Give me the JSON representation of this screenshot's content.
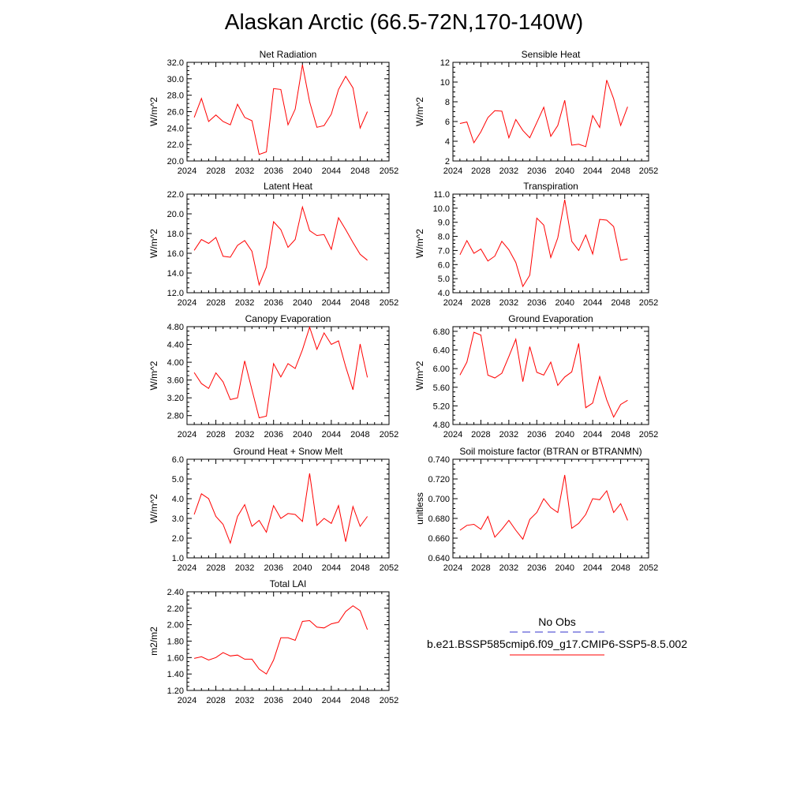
{
  "figure": {
    "title": "Alaskan Arctic (66.5-72N,170-140W)"
  },
  "legend": {
    "obs_label": "No Obs",
    "obs_color": "#3333cc",
    "case_label": "b.e21.BSSP585cmip6.f09_g17.CMIP6-SSP5-8.5.002",
    "case_color": "#ff0000"
  },
  "chart_data": [
    {
      "type": "line",
      "title": "Net Radiation",
      "ylabel": "W/m^2",
      "xlim": [
        2024,
        2052
      ],
      "ylim": [
        20,
        32
      ],
      "xticks": [
        "2024",
        "2028",
        "2032",
        "2036",
        "2040",
        "2044",
        "2048",
        "2052"
      ],
      "yticks": [
        "20.0",
        "22.0",
        "24.0",
        "26.0",
        "28.0",
        "30.0",
        "32.0"
      ],
      "x": [
        2025,
        2026,
        2027,
        2028,
        2029,
        2030,
        2031,
        2032,
        2033,
        2034,
        2035,
        2036,
        2037,
        2038,
        2039,
        2040,
        2041,
        2042,
        2043,
        2044,
        2045,
        2046,
        2047,
        2048,
        2049
      ],
      "series": [
        {
          "values": [
            25.3,
            27.6,
            24.8,
            25.6,
            24.8,
            24.4,
            26.9,
            25.3,
            24.9,
            20.8,
            21.1,
            28.8,
            28.7,
            24.4,
            26.3,
            31.7,
            27.2,
            24.1,
            24.3,
            25.7,
            28.7,
            30.3,
            28.9,
            24.0,
            26.0
          ]
        }
      ]
    },
    {
      "type": "line",
      "title": "Sensible Heat",
      "ylabel": "W/m^2",
      "xlim": [
        2024,
        2052
      ],
      "ylim": [
        2,
        12
      ],
      "xticks": [
        "2024",
        "2028",
        "2032",
        "2036",
        "2040",
        "2044",
        "2048",
        "2052"
      ],
      "yticks": [
        "2",
        "4",
        "6",
        "8",
        "10",
        "12"
      ],
      "x": [
        2025,
        2026,
        2027,
        2028,
        2029,
        2030,
        2031,
        2032,
        2033,
        2034,
        2035,
        2036,
        2037,
        2038,
        2039,
        2040,
        2041,
        2042,
        2043,
        2044,
        2045,
        2046,
        2047,
        2048,
        2049
      ],
      "series": [
        {
          "values": [
            5.8,
            5.95,
            3.85,
            4.95,
            6.4,
            7.1,
            7.05,
            4.35,
            6.2,
            5.1,
            4.35,
            5.9,
            7.45,
            4.5,
            5.6,
            8.15,
            3.6,
            3.7,
            3.45,
            6.6,
            5.4,
            10.2,
            8.3,
            5.6,
            7.5
          ]
        }
      ]
    },
    {
      "type": "line",
      "title": "Latent Heat",
      "ylabel": "W/m^2",
      "xlim": [
        2024,
        2052
      ],
      "ylim": [
        12,
        22
      ],
      "xticks": [
        "2024",
        "2028",
        "2032",
        "2036",
        "2040",
        "2044",
        "2048",
        "2052"
      ],
      "yticks": [
        "12.0",
        "14.0",
        "16.0",
        "18.0",
        "20.0",
        "22.0"
      ],
      "x": [
        2025,
        2026,
        2027,
        2028,
        2029,
        2030,
        2031,
        2032,
        2033,
        2034,
        2035,
        2036,
        2037,
        2038,
        2039,
        2040,
        2041,
        2042,
        2043,
        2044,
        2045,
        2046,
        2047,
        2048,
        2049
      ],
      "series": [
        {
          "values": [
            16.3,
            17.4,
            17.0,
            17.6,
            15.7,
            15.6,
            16.8,
            17.3,
            16.2,
            12.8,
            14.6,
            19.2,
            18.4,
            16.6,
            17.4,
            20.7,
            18.3,
            17.8,
            17.9,
            16.4,
            19.6,
            18.4,
            17.1,
            15.9,
            15.3
          ]
        }
      ]
    },
    {
      "type": "line",
      "title": "Transpiration",
      "ylabel": "W/m^2",
      "xlim": [
        2024,
        2052
      ],
      "ylim": [
        4,
        11
      ],
      "xticks": [
        "2024",
        "2028",
        "2032",
        "2036",
        "2040",
        "2044",
        "2048",
        "2052"
      ],
      "yticks": [
        "4.0",
        "5.0",
        "6.0",
        "7.0",
        "8.0",
        "9.0",
        "10.0",
        "11.0"
      ],
      "x": [
        2025,
        2026,
        2027,
        2028,
        2029,
        2030,
        2031,
        2032,
        2033,
        2034,
        2035,
        2036,
        2037,
        2038,
        2039,
        2040,
        2041,
        2042,
        2043,
        2044,
        2045,
        2046,
        2047,
        2048,
        2049
      ],
      "series": [
        {
          "values": [
            6.7,
            7.7,
            6.8,
            7.1,
            6.25,
            6.6,
            7.65,
            7.05,
            6.15,
            4.45,
            5.25,
            9.3,
            8.8,
            6.5,
            7.9,
            10.6,
            7.65,
            7.0,
            8.1,
            6.75,
            9.2,
            9.15,
            8.7,
            6.3,
            6.4
          ]
        }
      ]
    },
    {
      "type": "line",
      "title": "Canopy Evaporation",
      "ylabel": "W/m^2",
      "xlim": [
        2024,
        2052
      ],
      "ylim": [
        2.6,
        4.8
      ],
      "xticks": [
        "2024",
        "2028",
        "2032",
        "2036",
        "2040",
        "2044",
        "2048",
        "2052"
      ],
      "yticks": [
        "2.80",
        "3.20",
        "3.60",
        "4.00",
        "4.40",
        "4.80"
      ],
      "x": [
        2025,
        2026,
        2027,
        2028,
        2029,
        2030,
        2031,
        2032,
        2033,
        2034,
        2035,
        2036,
        2037,
        2038,
        2039,
        2040,
        2041,
        2042,
        2043,
        2044,
        2045,
        2046,
        2047,
        2048,
        2049
      ],
      "series": [
        {
          "values": [
            3.77,
            3.52,
            3.41,
            3.76,
            3.56,
            3.16,
            3.2,
            4.03,
            3.38,
            2.75,
            2.79,
            3.97,
            3.67,
            3.97,
            3.86,
            4.28,
            4.79,
            4.29,
            4.66,
            4.4,
            4.48,
            3.9,
            3.38,
            4.41,
            3.66
          ]
        }
      ]
    },
    {
      "type": "line",
      "title": "Ground Evaporation",
      "ylabel": "W/m^2",
      "xlim": [
        2024,
        2052
      ],
      "ylim": [
        4.8,
        6.9
      ],
      "xticks": [
        "2024",
        "2028",
        "2032",
        "2036",
        "2040",
        "2044",
        "2048",
        "2052"
      ],
      "yticks": [
        "4.80",
        "5.20",
        "5.60",
        "6.00",
        "6.40",
        "6.80"
      ],
      "x": [
        2025,
        2026,
        2027,
        2028,
        2029,
        2030,
        2031,
        2032,
        2033,
        2034,
        2035,
        2036,
        2037,
        2038,
        2039,
        2040,
        2041,
        2042,
        2043,
        2044,
        2045,
        2046,
        2047,
        2048,
        2049
      ],
      "series": [
        {
          "values": [
            5.86,
            6.14,
            6.78,
            6.72,
            5.86,
            5.8,
            5.9,
            6.26,
            6.63,
            5.72,
            6.47,
            5.92,
            5.86,
            6.14,
            5.64,
            5.82,
            5.93,
            6.54,
            5.16,
            5.26,
            5.83,
            5.33,
            4.96,
            5.23,
            5.32
          ]
        }
      ]
    },
    {
      "type": "line",
      "title": "Ground Heat + Snow Melt",
      "ylabel": "W/m^2",
      "xlim": [
        2024,
        2052
      ],
      "ylim": [
        1,
        6
      ],
      "xticks": [
        "2024",
        "2028",
        "2032",
        "2036",
        "2040",
        "2044",
        "2048",
        "2052"
      ],
      "yticks": [
        "1.0",
        "2.0",
        "3.0",
        "4.0",
        "5.0",
        "6.0"
      ],
      "x": [
        2025,
        2026,
        2027,
        2028,
        2029,
        2030,
        2031,
        2032,
        2033,
        2034,
        2035,
        2036,
        2037,
        2038,
        2039,
        2040,
        2041,
        2042,
        2043,
        2044,
        2045,
        2046,
        2047,
        2048,
        2049
      ],
      "series": [
        {
          "values": [
            3.2,
            4.25,
            4.0,
            3.1,
            2.7,
            1.75,
            3.1,
            3.7,
            2.6,
            2.9,
            2.3,
            3.65,
            3.0,
            3.25,
            3.2,
            2.85,
            5.28,
            2.65,
            3.0,
            2.75,
            3.65,
            1.82,
            3.6,
            2.6,
            3.1
          ]
        }
      ]
    },
    {
      "type": "line",
      "title": "Soil moisture factor (BTRAN or BTRANMN)",
      "ylabel": "unitless",
      "xlim": [
        2024,
        2052
      ],
      "ylim": [
        0.64,
        0.74
      ],
      "xticks": [
        "2024",
        "2028",
        "2032",
        "2036",
        "2040",
        "2044",
        "2048",
        "2052"
      ],
      "yticks": [
        "0.640",
        "0.660",
        "0.680",
        "0.700",
        "0.720",
        "0.740"
      ],
      "x": [
        2025,
        2026,
        2027,
        2028,
        2029,
        2030,
        2031,
        2032,
        2033,
        2034,
        2035,
        2036,
        2037,
        2038,
        2039,
        2040,
        2041,
        2042,
        2043,
        2044,
        2045,
        2046,
        2047,
        2048,
        2049
      ],
      "series": [
        {
          "values": [
            0.668,
            0.673,
            0.674,
            0.669,
            0.682,
            0.661,
            0.669,
            0.678,
            0.668,
            0.659,
            0.679,
            0.686,
            0.7,
            0.691,
            0.686,
            0.724,
            0.67,
            0.675,
            0.684,
            0.7,
            0.699,
            0.708,
            0.686,
            0.695,
            0.678
          ]
        }
      ]
    },
    {
      "type": "line",
      "title": "Total LAI",
      "ylabel": "m2/m2",
      "xlim": [
        2024,
        2052
      ],
      "ylim": [
        1.2,
        2.4
      ],
      "xticks": [
        "2024",
        "2028",
        "2032",
        "2036",
        "2040",
        "2044",
        "2048",
        "2052"
      ],
      "yticks": [
        "1.20",
        "1.40",
        "1.60",
        "1.80",
        "2.00",
        "2.20",
        "2.40"
      ],
      "x": [
        2025,
        2026,
        2027,
        2028,
        2029,
        2030,
        2031,
        2032,
        2033,
        2034,
        2035,
        2036,
        2037,
        2038,
        2039,
        2040,
        2041,
        2042,
        2043,
        2044,
        2045,
        2046,
        2047,
        2048,
        2049
      ],
      "series": [
        {
          "values": [
            1.59,
            1.61,
            1.57,
            1.6,
            1.66,
            1.62,
            1.63,
            1.58,
            1.58,
            1.46,
            1.4,
            1.57,
            1.84,
            1.84,
            1.81,
            2.04,
            2.05,
            1.97,
            1.96,
            2.01,
            2.03,
            2.16,
            2.23,
            2.17,
            1.94
          ]
        }
      ]
    }
  ]
}
